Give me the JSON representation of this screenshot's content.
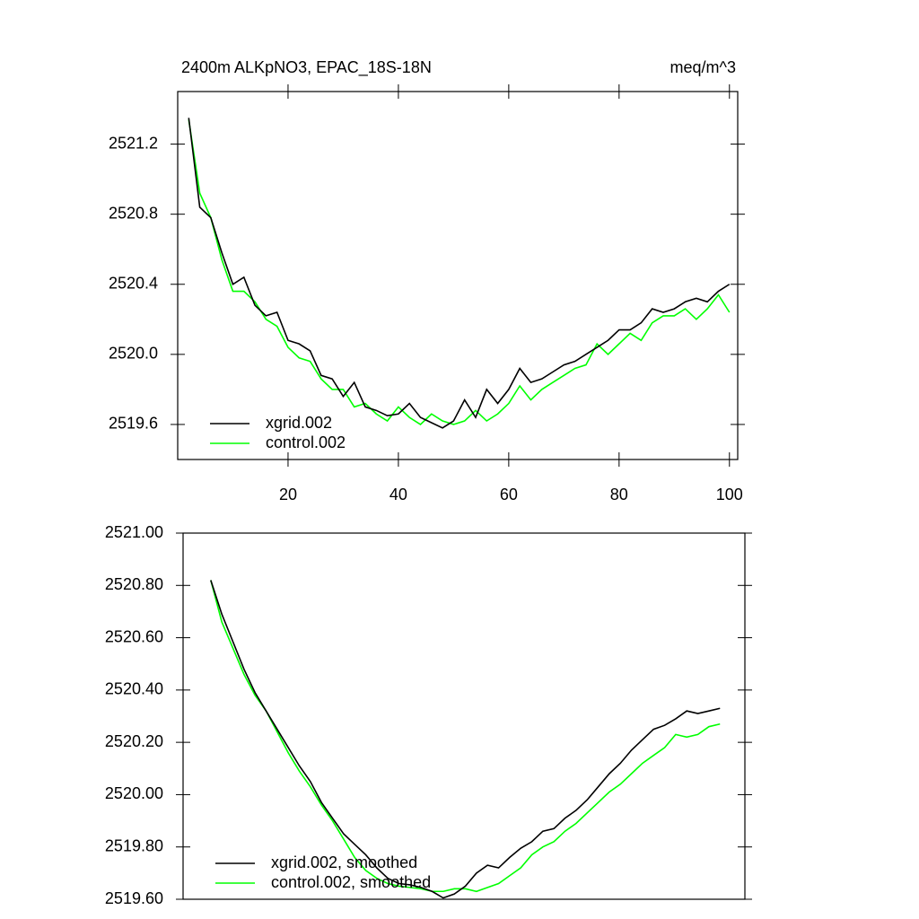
{
  "chart_data": [
    {
      "type": "line",
      "title": "2400m ALKpNO3, EPAC_18S-18N",
      "subtitle": "meq/m^3",
      "x": [
        2,
        4,
        6,
        8,
        10,
        12,
        14,
        16,
        18,
        20,
        22,
        24,
        26,
        28,
        30,
        32,
        34,
        36,
        38,
        40,
        42,
        44,
        46,
        48,
        50,
        52,
        54,
        56,
        58,
        60,
        62,
        64,
        66,
        68,
        70,
        72,
        74,
        76,
        78,
        80,
        82,
        84,
        86,
        88,
        90,
        92,
        94,
        96,
        98,
        100
      ],
      "series": [
        {
          "name": "xgrid.002",
          "color": "#000000",
          "values": [
            2521.35,
            2520.84,
            2520.78,
            2520.58,
            2520.4,
            2520.44,
            2520.28,
            2520.22,
            2520.24,
            2520.08,
            2520.06,
            2520.02,
            2519.88,
            2519.86,
            2519.76,
            2519.84,
            2519.7,
            2519.68,
            2519.65,
            2519.66,
            2519.72,
            2519.64,
            2519.61,
            2519.58,
            2519.62,
            2519.74,
            2519.64,
            2519.8,
            2519.72,
            2519.8,
            2519.92,
            2519.84,
            2519.86,
            2519.9,
            2519.94,
            2519.96,
            2520.0,
            2520.04,
            2520.08,
            2520.14,
            2520.14,
            2520.18,
            2520.26,
            2520.24,
            2520.26,
            2520.3,
            2520.32,
            2520.3,
            2520.36,
            2520.4
          ]
        },
        {
          "name": "control.002",
          "color": "#00ff00",
          "values": [
            2521.34,
            2520.92,
            2520.78,
            2520.54,
            2520.36,
            2520.36,
            2520.3,
            2520.2,
            2520.16,
            2520.04,
            2519.98,
            2519.96,
            2519.86,
            2519.8,
            2519.8,
            2519.7,
            2519.72,
            2519.66,
            2519.62,
            2519.7,
            2519.64,
            2519.6,
            2519.66,
            2519.62,
            2519.6,
            2519.62,
            2519.68,
            2519.62,
            2519.66,
            2519.72,
            2519.82,
            2519.74,
            2519.8,
            2519.84,
            2519.88,
            2519.92,
            2519.94,
            2520.06,
            2520.0,
            2520.06,
            2520.12,
            2520.08,
            2520.18,
            2520.22,
            2520.22,
            2520.26,
            2520.2,
            2520.26,
            2520.34,
            2520.24
          ]
        }
      ],
      "xlim": [
        0,
        101.5
      ],
      "xticks": [
        20,
        40,
        60,
        80,
        100
      ],
      "ylim": [
        2519.4,
        2521.5
      ],
      "yticks": [
        2519.6,
        {
          "value": 2520,
          "label": "2520.0"
        },
        2520.4,
        2520.8,
        2521.2
      ],
      "legend": "lower left"
    },
    {
      "type": "line",
      "x": [
        5,
        7,
        9,
        11,
        13,
        15,
        17,
        19,
        21,
        23,
        25,
        27,
        29,
        31,
        33,
        35,
        37,
        39,
        41,
        43,
        45,
        47,
        49,
        51,
        53,
        55,
        57,
        59,
        61,
        63,
        65,
        67,
        69,
        71,
        73,
        75,
        77,
        79,
        81,
        83,
        85,
        87,
        89,
        91,
        93,
        95,
        97
      ],
      "series": [
        {
          "name": "xgrid.002, smoothed",
          "color": "#000000",
          "values": [
            2520.82,
            2520.69,
            2520.585,
            2520.48,
            2520.39,
            2520.32,
            2520.25,
            2520.18,
            2520.11,
            2520.05,
            2519.97,
            2519.91,
            2519.85,
            2519.81,
            2519.77,
            2519.72,
            2519.68,
            2519.66,
            2519.655,
            2519.645,
            2519.63,
            2519.605,
            2519.62,
            2519.65,
            2519.7,
            2519.73,
            2519.72,
            2519.76,
            2519.795,
            2519.82,
            2519.86,
            2519.87,
            2519.91,
            2519.94,
            2519.98,
            2520.03,
            2520.08,
            2520.12,
            2520.17,
            2520.21,
            2520.25,
            2520.265,
            2520.29,
            2520.32,
            2520.31,
            2520.32,
            2520.33
          ]
        },
        {
          "name": "control.002, smoothed",
          "color": "#00ff00",
          "values": [
            2520.82,
            2520.66,
            2520.56,
            2520.46,
            2520.38,
            2520.32,
            2520.24,
            2520.16,
            2520.09,
            2520.03,
            2519.96,
            2519.9,
            2519.83,
            2519.76,
            2519.71,
            2519.68,
            2519.66,
            2519.65,
            2519.645,
            2519.64,
            2519.63,
            2519.63,
            2519.64,
            2519.64,
            2519.63,
            2519.645,
            2519.66,
            2519.69,
            2519.72,
            2519.77,
            2519.8,
            2519.82,
            2519.86,
            2519.89,
            2519.93,
            2519.97,
            2520.01,
            2520.04,
            2520.08,
            2520.12,
            2520.15,
            2520.18,
            2520.23,
            2520.22,
            2520.23,
            2520.26,
            2520.27
          ]
        }
      ],
      "xlim": [
        0,
        101.5
      ],
      "ylim": [
        2519.6,
        2521.0
      ],
      "yticks": [
        {
          "value": 2519.6,
          "label": "2519.60"
        },
        {
          "value": 2519.8,
          "label": "2519.80"
        },
        {
          "value": 2520.0,
          "label": "2520.00"
        },
        {
          "value": 2520.2,
          "label": "2520.20"
        },
        {
          "value": 2520.4,
          "label": "2520.40"
        },
        {
          "value": 2520.6,
          "label": "2520.60"
        },
        {
          "value": 2520.8,
          "label": "2520.80"
        },
        {
          "value": 2521.0,
          "label": "2521.00"
        }
      ],
      "legend": "lower left"
    }
  ]
}
